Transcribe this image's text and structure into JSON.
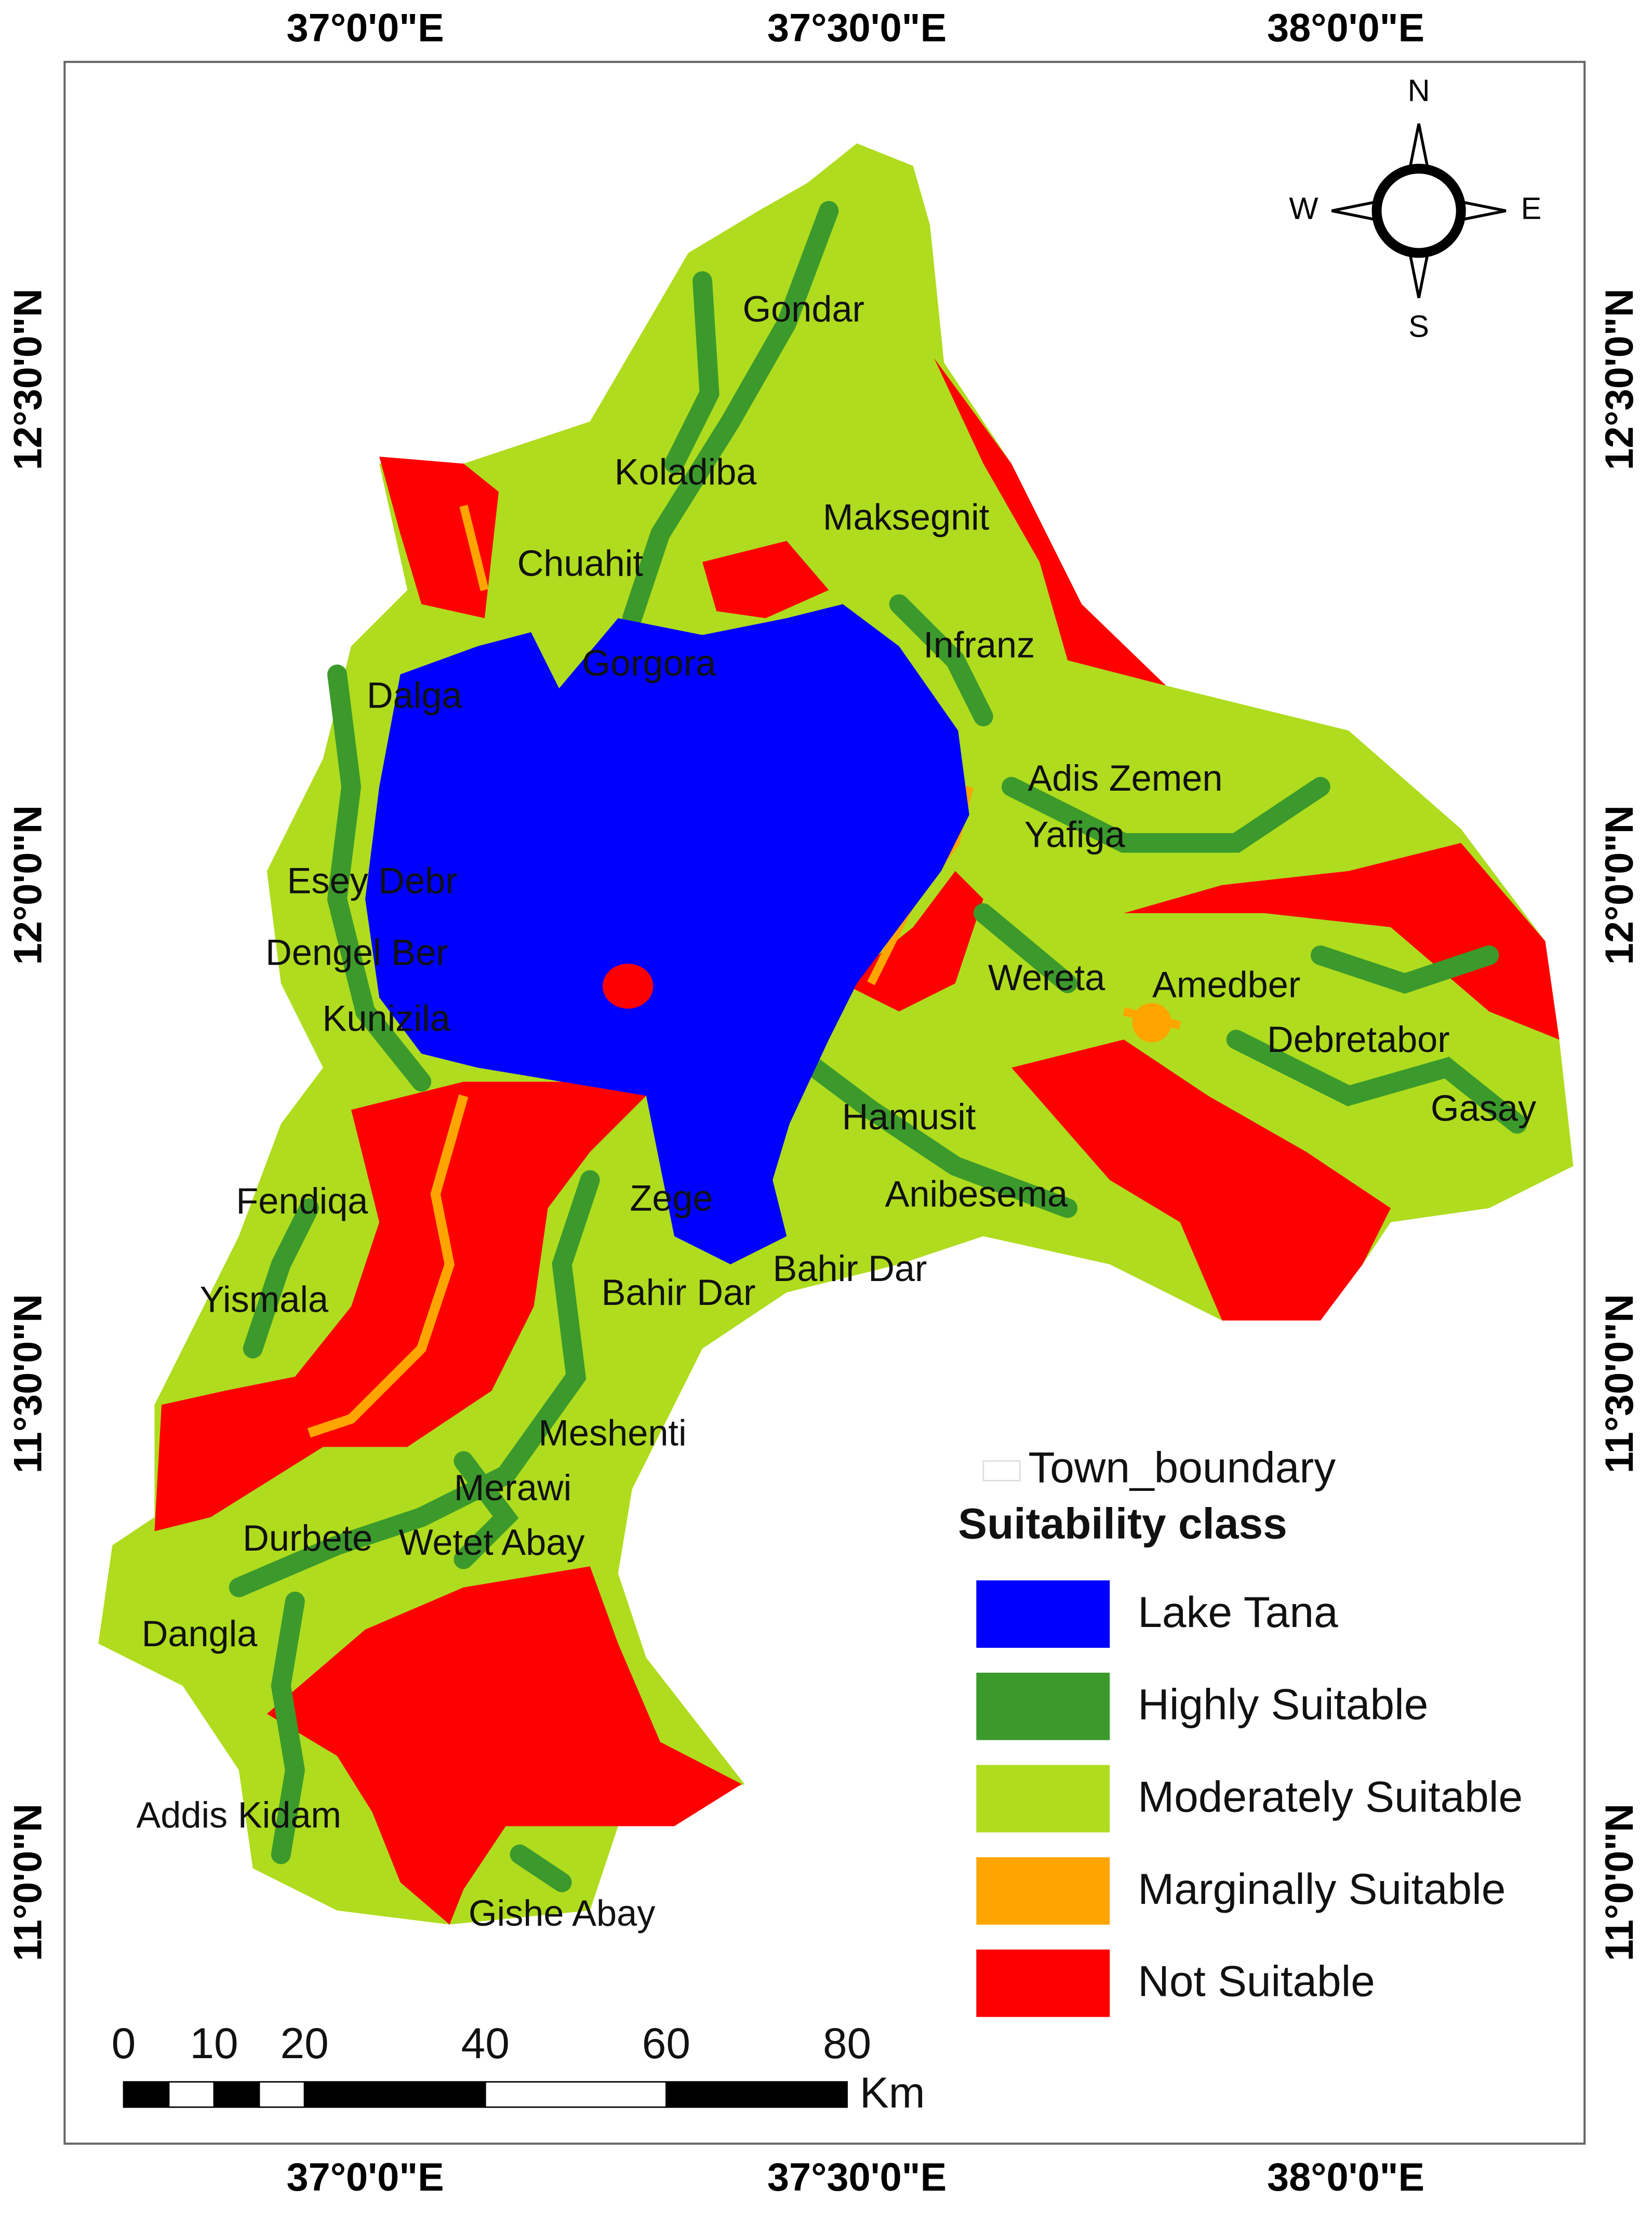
{
  "map": {
    "top_coordinates": [
      "37°0'0\"E",
      "37°30'0\"E",
      "38°0'0\"E"
    ],
    "bottom_coordinates": [
      "37°0'0\"E",
      "37°30'0\"E",
      "38°0'0\"E"
    ],
    "left_coordinates": [
      "12°30'0\"N",
      "12°0'0\"N",
      "11°30'0\"N",
      "11°0'0\"N"
    ],
    "right_coordinates": [
      "12°30'0\"N",
      "12°0'0\"N",
      "11°30'0\"N",
      "11°0'0\"N"
    ],
    "compass": {
      "n": "N",
      "e": "E",
      "s": "S",
      "w": "W"
    },
    "towns": [
      "Gondar",
      "Koladiba",
      "Maksegnit",
      "Chuahit",
      "Infranz",
      "Gorgora",
      "Dalga",
      "Adis Zemen",
      "Yafiga",
      "Esey Debr",
      "Dengel Ber",
      "Wereta",
      "Amedber",
      "Kunizila",
      "Debretabor",
      "Hamusit",
      "Gasay",
      "Fendiqa",
      "Anibesema",
      "Zege",
      "Bahir Dar",
      "Bahir Dar",
      "Yismala",
      "Meshenti",
      "Merawi",
      "Durbete",
      "Wetet Abay",
      "Dangla",
      "Addis Kidam",
      "Gishe Abay"
    ],
    "legend": {
      "boundary": "Town_boundary",
      "title": "Suitability class",
      "items": [
        {
          "label": "Lake Tana",
          "color": "#0000ff"
        },
        {
          "label": "Highly Suitable",
          "color": "#3c9a2c"
        },
        {
          "label": "Moderately Suitable",
          "color": "#afdc1e"
        },
        {
          "label": "Marginally Suitable",
          "color": "#ffa500"
        },
        {
          "label": "Not Suitable",
          "color": "#ff0000"
        }
      ]
    },
    "scale_bar": {
      "ticks": [
        0,
        10,
        20,
        40,
        60,
        80
      ],
      "unit": "Km"
    }
  }
}
